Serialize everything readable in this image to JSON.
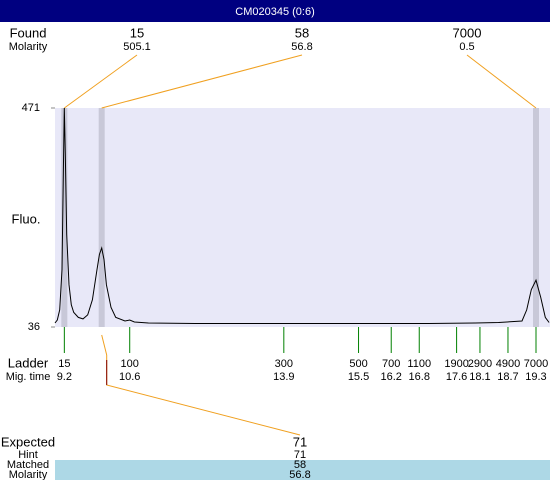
{
  "chart_data": {
    "type": "line",
    "title": "CM020345 (0:6)",
    "ylabel": "Fluo.",
    "labels": {
      "found": "Found",
      "molarity": "Molarity",
      "ladder": "Ladder",
      "mig_time": "Mig. time",
      "expected": "Expected",
      "hint": "Hint",
      "matched": "Matched",
      "molarity_matched": "Molarity"
    },
    "x": [
      9.0,
      9.05,
      9.1,
      9.15,
      9.18,
      9.2,
      9.22,
      9.25,
      9.3,
      9.35,
      9.4,
      9.5,
      9.6,
      9.7,
      9.8,
      9.9,
      9.95,
      10.0,
      10.05,
      10.1,
      10.2,
      10.3,
      10.5,
      10.6,
      10.7,
      11,
      12,
      13,
      14,
      15,
      16,
      17,
      18,
      18.5,
      19.0,
      19.1,
      19.2,
      19.3,
      19.4,
      19.5,
      19.58
    ],
    "values": [
      44,
      50,
      70,
      150,
      350,
      471,
      380,
      220,
      120,
      80,
      65,
      55,
      52,
      60,
      90,
      150,
      180,
      193,
      170,
      120,
      75,
      55,
      48,
      50,
      46,
      44,
      43,
      43,
      43,
      43,
      43,
      43,
      44,
      45,
      48,
      70,
      110,
      129,
      95,
      55,
      45
    ],
    "color": "#000000",
    "xlim": [
      9.0,
      19.6
    ],
    "ylim": [
      36,
      471
    ],
    "yticks": [
      36,
      471
    ],
    "peaks": [
      {
        "size": 15,
        "molarity": 505.1,
        "time": 9.2
      },
      {
        "size": 58,
        "molarity": 56.8,
        "time": 10.0
      },
      {
        "size": 7000,
        "molarity": 0.5,
        "time": 19.3
      }
    ],
    "ladder": {
      "sizes": [
        15,
        100,
        300,
        500,
        700,
        1100,
        1900,
        2900,
        4900,
        7000
      ],
      "times": [
        9.2,
        10.6,
        13.9,
        15.5,
        16.2,
        16.8,
        17.6,
        18.1,
        18.7,
        19.3
      ]
    },
    "expected": {
      "size": 71,
      "hint": 71,
      "matched": 58,
      "molarity": 56.8
    }
  }
}
